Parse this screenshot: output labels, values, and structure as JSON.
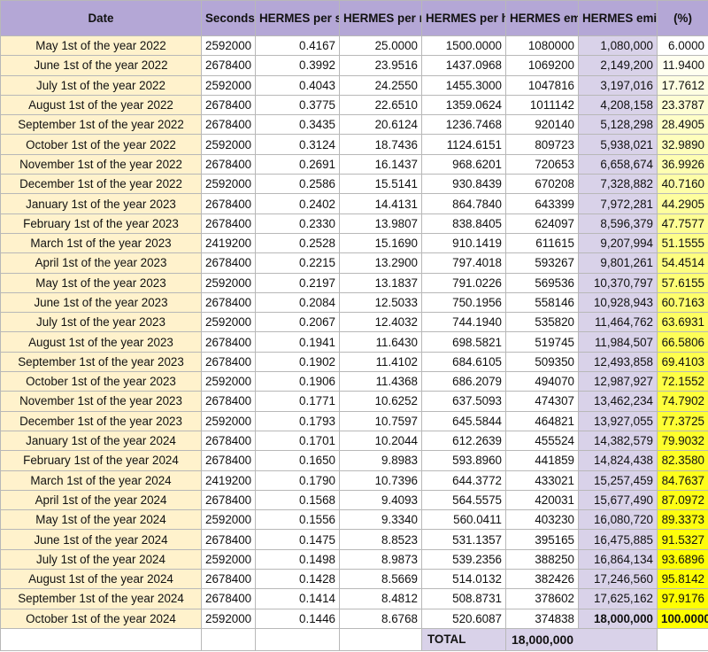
{
  "headers": {
    "date": "Date",
    "seconds": "Seconds",
    "per_second": "HERMES per second",
    "per_minute": "HERMES per minute",
    "per_hour": "HERMES per hour",
    "emitted": "HERMES emitted",
    "emitted_sum": "HERMES emitted sum",
    "percent": "(%)"
  },
  "rows": [
    {
      "date": "May 1st of the year 2022",
      "seconds": "2592000",
      "per_second": "0.4167",
      "per_minute": "25.0000",
      "per_hour": "1500.0000",
      "emitted": "1080000",
      "emitted_sum": "1,080,000",
      "percent": "6.0000",
      "pct_color": "#ffffff"
    },
    {
      "date": "June 1st of the year 2022",
      "seconds": "2678400",
      "per_second": "0.3992",
      "per_minute": "23.9516",
      "per_hour": "1437.0968",
      "emitted": "1069200",
      "emitted_sum": "2,149,200",
      "percent": "11.9400",
      "pct_color": "#fffff0"
    },
    {
      "date": "July 1st of the year 2022",
      "seconds": "2592000",
      "per_second": "0.4043",
      "per_minute": "24.2550",
      "per_hour": "1455.3000",
      "emitted": "1047816",
      "emitted_sum": "3,197,016",
      "percent": "17.7612",
      "pct_color": "#fefee2"
    },
    {
      "date": "August 1st of the year 2022",
      "seconds": "2678400",
      "per_second": "0.3775",
      "per_minute": "22.6510",
      "per_hour": "1359.0624",
      "emitted": "1011142",
      "emitted_sum": "4,208,158",
      "percent": "23.3787",
      "pct_color": "#fefed4"
    },
    {
      "date": "September 1st of the year 2022",
      "seconds": "2678400",
      "per_second": "0.3435",
      "per_minute": "20.6124",
      "per_hour": "1236.7468",
      "emitted": "920140",
      "emitted_sum": "5,128,298",
      "percent": "28.4905",
      "pct_color": "#fefec7"
    },
    {
      "date": "October 1st of the year 2022",
      "seconds": "2592000",
      "per_second": "0.3124",
      "per_minute": "18.7436",
      "per_hour": "1124.6151",
      "emitted": "809723",
      "emitted_sum": "5,938,021",
      "percent": "32.9890",
      "pct_color": "#fefebc"
    },
    {
      "date": "November 1st of the year 2022",
      "seconds": "2678400",
      "per_second": "0.2691",
      "per_minute": "16.1437",
      "per_hour": "968.6201",
      "emitted": "720653",
      "emitted_sum": "6,658,674",
      "percent": "36.9926",
      "pct_color": "#fefeb2"
    },
    {
      "date": "December 1st of the year 2022",
      "seconds": "2592000",
      "per_second": "0.2586",
      "per_minute": "15.5141",
      "per_hour": "930.8439",
      "emitted": "670208",
      "emitted_sum": "7,328,882",
      "percent": "40.7160",
      "pct_color": "#fefea8"
    },
    {
      "date": "January 1st of the year 2023",
      "seconds": "2678400",
      "per_second": "0.2402",
      "per_minute": "14.4131",
      "per_hour": "864.7840",
      "emitted": "643399",
      "emitted_sum": "7,972,281",
      "percent": "44.2905",
      "pct_color": "#fefe9e"
    },
    {
      "date": "February 1st of the year 2023",
      "seconds": "2678400",
      "per_second": "0.2330",
      "per_minute": "13.9807",
      "per_hour": "838.8405",
      "emitted": "624097",
      "emitted_sum": "8,596,379",
      "percent": "47.7577",
      "pct_color": "#fefe94"
    },
    {
      "date": "March 1st of the year 2023",
      "seconds": "2419200",
      "per_second": "0.2528",
      "per_minute": "15.1690",
      "per_hour": "910.1419",
      "emitted": "611615",
      "emitted_sum": "9,207,994",
      "percent": "51.1555",
      "pct_color": "#fefe8a"
    },
    {
      "date": "April 1st of the year 2023",
      "seconds": "2678400",
      "per_second": "0.2215",
      "per_minute": "13.2900",
      "per_hour": "797.4018",
      "emitted": "593267",
      "emitted_sum": "9,801,261",
      "percent": "54.4514",
      "pct_color": "#fefe80"
    },
    {
      "date": "May 1st of the year 2023",
      "seconds": "2592000",
      "per_second": "0.2197",
      "per_minute": "13.1837",
      "per_hour": "791.0226",
      "emitted": "569536",
      "emitted_sum": "10,370,797",
      "percent": "57.6155",
      "pct_color": "#fefe76"
    },
    {
      "date": "June 1st of the year 2023",
      "seconds": "2678400",
      "per_second": "0.2084",
      "per_minute": "12.5033",
      "per_hour": "750.1956",
      "emitted": "558146",
      "emitted_sum": "10,928,943",
      "percent": "60.7163",
      "pct_color": "#fefe6c"
    },
    {
      "date": "July 1st of the year 2023",
      "seconds": "2592000",
      "per_second": "0.2067",
      "per_minute": "12.4032",
      "per_hour": "744.1940",
      "emitted": "535820",
      "emitted_sum": "11,464,762",
      "percent": "63.6931",
      "pct_color": "#fefe62"
    },
    {
      "date": "August 1st of the year 2023",
      "seconds": "2678400",
      "per_second": "0.1941",
      "per_minute": "11.6430",
      "per_hour": "698.5821",
      "emitted": "519745",
      "emitted_sum": "11,984,507",
      "percent": "66.5806",
      "pct_color": "#fefe58"
    },
    {
      "date": "September 1st of the year 2023",
      "seconds": "2678400",
      "per_second": "0.1902",
      "per_minute": "11.4102",
      "per_hour": "684.6105",
      "emitted": "509350",
      "emitted_sum": "12,493,858",
      "percent": "69.4103",
      "pct_color": "#fefe4e"
    },
    {
      "date": "October 1st of the year 2023",
      "seconds": "2592000",
      "per_second": "0.1906",
      "per_minute": "11.4368",
      "per_hour": "686.2079",
      "emitted": "494070",
      "emitted_sum": "12,987,927",
      "percent": "72.1552",
      "pct_color": "#fefe45"
    },
    {
      "date": "November 1st of the year 2023",
      "seconds": "2678400",
      "per_second": "0.1771",
      "per_minute": "10.6252",
      "per_hour": "637.5093",
      "emitted": "474307",
      "emitted_sum": "13,462,234",
      "percent": "74.7902",
      "pct_color": "#fefe3c"
    },
    {
      "date": "December 1st of the year 2023",
      "seconds": "2592000",
      "per_second": "0.1793",
      "per_minute": "10.7597",
      "per_hour": "645.5844",
      "emitted": "464821",
      "emitted_sum": "13,927,055",
      "percent": "77.3725",
      "pct_color": "#fefe34"
    },
    {
      "date": "January 1st of the year 2024",
      "seconds": "2678400",
      "per_second": "0.1701",
      "per_minute": "10.2044",
      "per_hour": "612.2639",
      "emitted": "455524",
      "emitted_sum": "14,382,579",
      "percent": "79.9032",
      "pct_color": "#fefe2c"
    },
    {
      "date": "February 1st of the year 2024",
      "seconds": "2678400",
      "per_second": "0.1650",
      "per_minute": "9.8983",
      "per_hour": "593.8960",
      "emitted": "441859",
      "emitted_sum": "14,824,438",
      "percent": "82.3580",
      "pct_color": "#fefe24"
    },
    {
      "date": "March 1st of the year 2024",
      "seconds": "2419200",
      "per_second": "0.1790",
      "per_minute": "10.7396",
      "per_hour": "644.3772",
      "emitted": "433021",
      "emitted_sum": "15,257,459",
      "percent": "84.7637",
      "pct_color": "#fefe1d"
    },
    {
      "date": "April 1st of the year 2024",
      "seconds": "2678400",
      "per_second": "0.1568",
      "per_minute": "9.4093",
      "per_hour": "564.5575",
      "emitted": "420031",
      "emitted_sum": "15,677,490",
      "percent": "87.0972",
      "pct_color": "#fefe16"
    },
    {
      "date": "May 1st of the year 2024",
      "seconds": "2592000",
      "per_second": "0.1556",
      "per_minute": "9.3340",
      "per_hour": "560.0411",
      "emitted": "403230",
      "emitted_sum": "16,080,720",
      "percent": "89.3373",
      "pct_color": "#fefe10"
    },
    {
      "date": "June 1st of the year 2024",
      "seconds": "2678400",
      "per_second": "0.1475",
      "per_minute": "8.8523",
      "per_hour": "531.1357",
      "emitted": "395165",
      "emitted_sum": "16,475,885",
      "percent": "91.5327",
      "pct_color": "#fefe0b"
    },
    {
      "date": "July 1st of the year 2024",
      "seconds": "2592000",
      "per_second": "0.1498",
      "per_minute": "8.9873",
      "per_hour": "539.2356",
      "emitted": "388250",
      "emitted_sum": "16,864,134",
      "percent": "93.6896",
      "pct_color": "#fefe07"
    },
    {
      "date": "August 1st of the year 2024",
      "seconds": "2678400",
      "per_second": "0.1428",
      "per_minute": "8.5669",
      "per_hour": "514.0132",
      "emitted": "382426",
      "emitted_sum": "17,246,560",
      "percent": "95.8142",
      "pct_color": "#fefe04"
    },
    {
      "date": "September 1st of the year 2024",
      "seconds": "2678400",
      "per_second": "0.1414",
      "per_minute": "8.4812",
      "per_hour": "508.8731",
      "emitted": "378602",
      "emitted_sum": "17,625,162",
      "percent": "97.9176",
      "pct_color": "#fefe02"
    },
    {
      "date": "October 1st of the year 2024",
      "seconds": "2592000",
      "per_second": "0.1446",
      "per_minute": "8.6768",
      "per_hour": "520.6087",
      "emitted": "374838",
      "emitted_sum": "18,000,000",
      "percent": "100.0000",
      "pct_color": "#ffff00",
      "bold": true
    }
  ],
  "footer": {
    "total_label": "TOTAL",
    "total_value": "18,000,000"
  },
  "colors": {
    "header_bg": "#b4a7d6",
    "date_bg": "#fff2cc",
    "sum_bg": "#d9d2e9",
    "percent_max": "#ffff00"
  }
}
